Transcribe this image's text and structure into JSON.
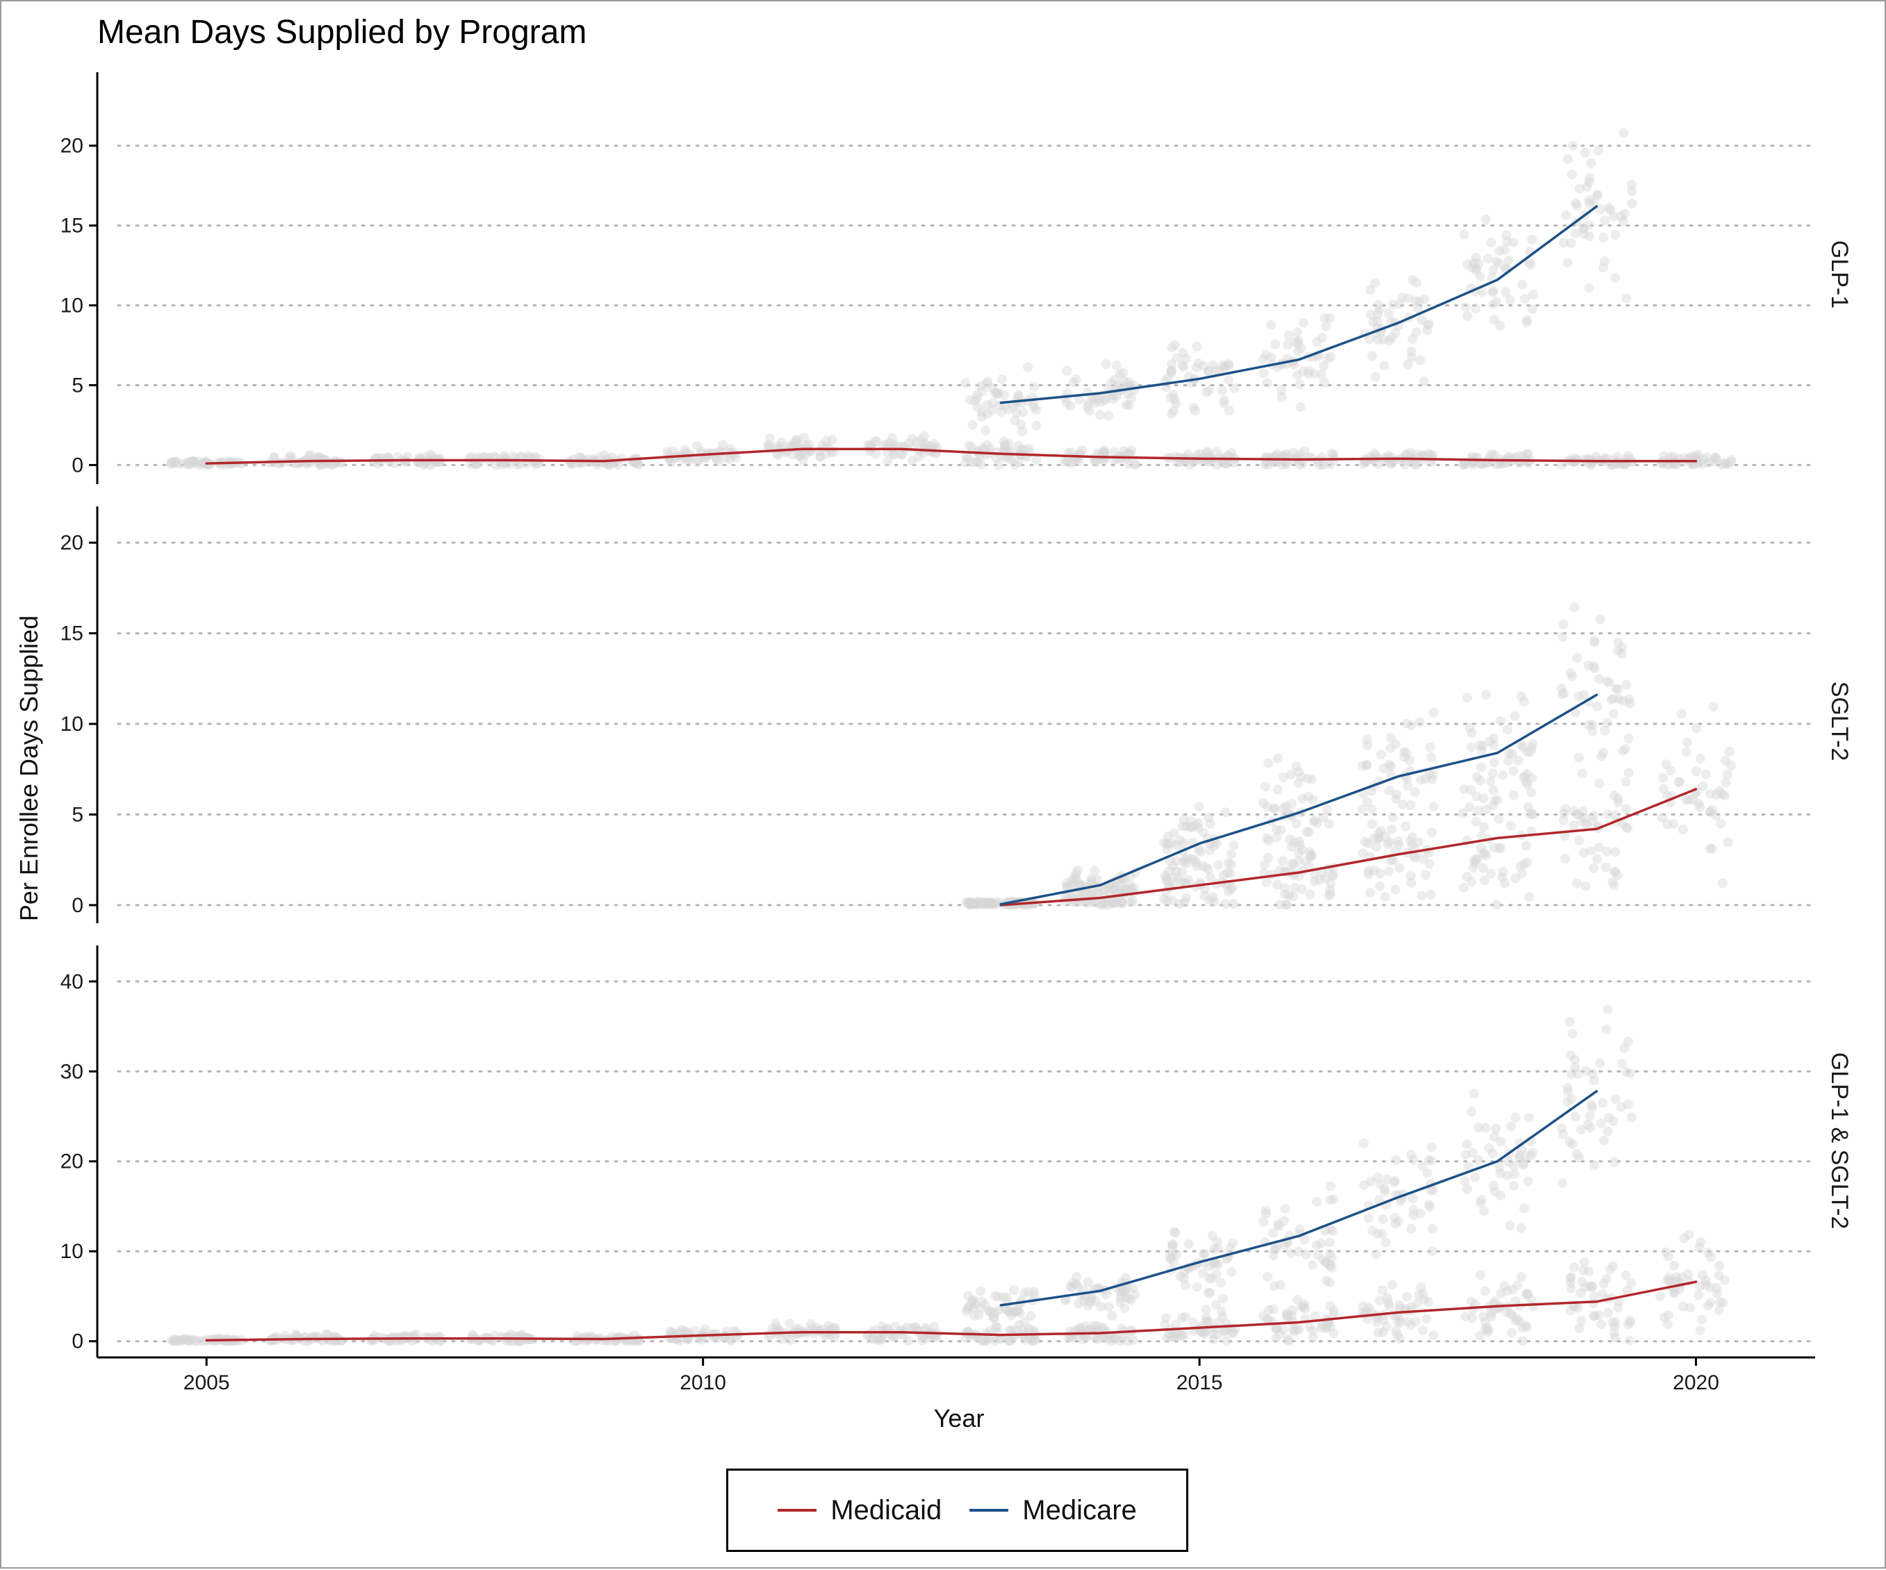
{
  "chart_data": {
    "type": "line",
    "title": "Mean Days Supplied by Program",
    "xlabel": "Year",
    "ylabel": "Per Enrollee Days Supplied",
    "xlim": [
      2003.9,
      2021.2
    ],
    "x_ticks": [
      2005,
      2010,
      2015,
      2020
    ],
    "grid": "horizontal dotted",
    "legend_position": "bottom",
    "colors": {
      "Medicaid": "#b2272a",
      "Medicare": "#1d5187",
      "points": "#d8d8d8"
    },
    "legend": [
      "Medicaid",
      "Medicare"
    ],
    "panels": [
      {
        "strip": "GLP-1",
        "ylim": [
          -1.2,
          24.6
        ],
        "y_ticks": [
          0,
          5,
          10,
          15,
          20
        ],
        "series": [
          {
            "name": "Medicaid",
            "x": [
              2005,
              2006,
              2007,
              2008,
              2009,
              2010,
              2011,
              2012,
              2013,
              2014,
              2015,
              2016,
              2017,
              2018,
              2019,
              2020
            ],
            "values": [
              0.1,
              0.25,
              0.3,
              0.3,
              0.25,
              0.65,
              1.0,
              1.0,
              0.7,
              0.5,
              0.4,
              0.35,
              0.4,
              0.3,
              0.25,
              0.25
            ]
          },
          {
            "name": "Medicare",
            "x": [
              2013,
              2014,
              2015,
              2016,
              2017,
              2018,
              2019
            ],
            "values": [
              3.9,
              4.5,
              5.4,
              6.6,
              8.9,
              11.6,
              16.2
            ]
          }
        ],
        "points": {
          "years": [
            2005,
            2006,
            2007,
            2008,
            2009,
            2010,
            2011,
            2012,
            2013,
            2014,
            2015,
            2016,
            2017,
            2018,
            2019,
            2020
          ],
          "medicaid_center": [
            0.1,
            0.25,
            0.3,
            0.3,
            0.25,
            0.65,
            1.0,
            1.0,
            0.7,
            0.5,
            0.4,
            0.35,
            0.4,
            0.3,
            0.25,
            0.25
          ],
          "medicaid_spread": [
            0.15,
            0.3,
            0.3,
            0.35,
            0.3,
            0.5,
            0.6,
            0.7,
            0.8,
            0.5,
            0.4,
            0.4,
            0.4,
            0.4,
            0.3,
            0.35
          ],
          "medicare_center": [
            null,
            null,
            null,
            null,
            null,
            null,
            null,
            null,
            3.9,
            4.5,
            5.4,
            6.6,
            8.9,
            11.6,
            16.2,
            null
          ],
          "medicare_spread": [
            null,
            null,
            null,
            null,
            null,
            null,
            null,
            null,
            1.6,
            1.6,
            2.0,
            2.2,
            2.6,
            3.2,
            4.2,
            null
          ]
        }
      },
      {
        "strip": "SGLT-2",
        "ylim": [
          -1.0,
          22.0
        ],
        "y_ticks": [
          0,
          5,
          10,
          15,
          20
        ],
        "series": [
          {
            "name": "Medicaid",
            "x": [
              2013,
              2014,
              2015,
              2016,
              2017,
              2018,
              2019,
              2020
            ],
            "values": [
              0.0,
              0.4,
              1.1,
              1.8,
              2.8,
              3.7,
              4.2,
              6.4
            ]
          },
          {
            "name": "Medicare",
            "x": [
              2013,
              2014,
              2015,
              2016,
              2017,
              2018,
              2019
            ],
            "values": [
              0.05,
              1.1,
              3.4,
              5.1,
              7.1,
              8.4,
              11.6
            ]
          }
        ],
        "points": {
          "years": [
            2013,
            2014,
            2015,
            2016,
            2017,
            2018,
            2019,
            2020
          ],
          "medicaid_center": [
            0.1,
            0.4,
            1.1,
            1.8,
            2.8,
            3.7,
            4.2,
            6.4
          ],
          "medicaid_spread": [
            0.1,
            0.6,
            1.2,
            1.8,
            2.4,
            2.8,
            3.2,
            4.0
          ],
          "medicare_center": [
            0.1,
            1.1,
            3.4,
            5.1,
            7.1,
            8.4,
            11.6,
            null
          ],
          "medicare_spread": [
            0.1,
            0.8,
            1.8,
            2.5,
            3.0,
            3.4,
            4.0,
            null
          ]
        }
      },
      {
        "strip": "GLP-1 & SGLT-2",
        "ylim": [
          -1.8,
          44.0
        ],
        "y_ticks": [
          0,
          10,
          20,
          30,
          40
        ],
        "series": [
          {
            "name": "Medicaid",
            "x": [
              2005,
              2006,
              2007,
              2008,
              2009,
              2010,
              2011,
              2012,
              2013,
              2014,
              2015,
              2016,
              2017,
              2018,
              2019,
              2020
            ],
            "values": [
              0.1,
              0.25,
              0.3,
              0.3,
              0.25,
              0.65,
              1.0,
              1.0,
              0.7,
              0.9,
              1.5,
              2.1,
              3.2,
              3.9,
              4.4,
              6.6
            ]
          },
          {
            "name": "Medicare",
            "x": [
              2013,
              2014,
              2015,
              2016,
              2017,
              2018,
              2019
            ],
            "values": [
              4.0,
              5.6,
              8.8,
              11.7,
              16.0,
              20.0,
              27.8
            ]
          }
        ],
        "points": {
          "years": [
            2005,
            2006,
            2007,
            2008,
            2009,
            2010,
            2011,
            2012,
            2013,
            2014,
            2015,
            2016,
            2017,
            2018,
            2019,
            2020
          ],
          "medicaid_center": [
            0.1,
            0.25,
            0.3,
            0.3,
            0.25,
            0.65,
            1.0,
            1.0,
            0.7,
            0.9,
            1.5,
            2.1,
            3.2,
            3.9,
            4.4,
            6.6
          ],
          "medicaid_spread": [
            0.2,
            0.4,
            0.4,
            0.4,
            0.4,
            0.6,
            0.8,
            0.9,
            1.0,
            1.2,
            1.8,
            2.4,
            3.0,
            3.4,
            3.8,
            4.5
          ],
          "medicare_center": [
            null,
            null,
            null,
            null,
            null,
            null,
            null,
            null,
            4.0,
            5.6,
            8.8,
            11.7,
            16.0,
            20.0,
            27.8,
            null
          ],
          "medicare_spread": [
            null,
            null,
            null,
            null,
            null,
            null,
            null,
            null,
            1.8,
            2.2,
            3.4,
            4.5,
            5.2,
            6.0,
            7.5,
            null
          ]
        }
      }
    ]
  }
}
